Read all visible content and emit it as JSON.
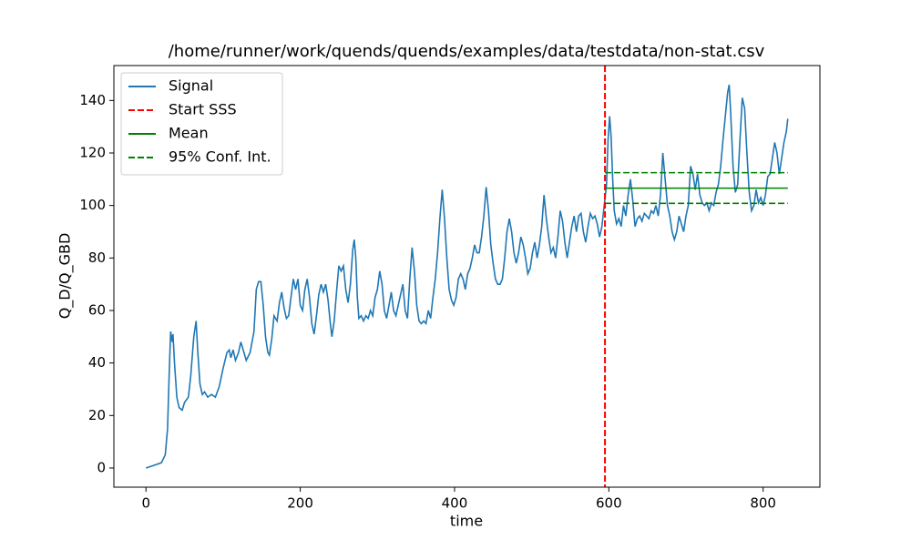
{
  "chart_data": {
    "type": "line",
    "title": "/home/runner/work/quends/quends/examples/data/testdata/non-stat.csv",
    "xlabel": "time",
    "ylabel": "Q_D/Q_GBD",
    "xlim": [
      -41.6,
      873.6
    ],
    "ylim": [
      -7.3,
      153.3
    ],
    "xticks": [
      0,
      200,
      400,
      600,
      800
    ],
    "yticks": [
      0,
      20,
      40,
      60,
      80,
      100,
      120,
      140
    ],
    "grid": false,
    "legend": "upper left",
    "series": [
      {
        "name": "Signal",
        "color": "#1f77b4",
        "dash": false,
        "x": [
          0,
          10,
          20,
          25,
          28,
          30,
          32,
          34,
          35,
          37,
          40,
          43,
          47,
          50,
          55,
          58,
          62,
          65,
          67,
          70,
          73,
          76,
          80,
          85,
          90,
          95,
          100,
          105,
          108,
          110,
          113,
          116,
          120,
          123,
          127,
          130,
          135,
          140,
          143,
          146,
          149,
          152,
          155,
          158,
          160,
          163,
          166,
          170,
          173,
          176,
          179,
          182,
          185,
          188,
          191,
          194,
          197,
          200,
          203,
          206,
          209,
          212,
          215,
          218,
          221,
          224,
          227,
          230,
          233,
          236,
          239,
          241,
          244,
          247,
          250,
          253,
          256,
          259,
          262,
          265,
          268,
          270,
          272,
          274,
          276,
          279,
          282,
          285,
          288,
          291,
          294,
          297,
          300,
          303,
          306,
          309,
          312,
          315,
          318,
          321,
          324,
          327,
          330,
          333,
          336,
          339,
          342,
          345,
          348,
          351,
          354,
          357,
          360,
          363,
          366,
          369,
          372,
          375,
          378,
          381,
          384,
          387,
          390,
          393,
          396,
          399,
          402,
          405,
          408,
          411,
          414,
          417,
          420,
          423,
          426,
          429,
          432,
          435,
          438,
          441,
          444,
          447,
          450,
          453,
          456,
          459,
          462,
          465,
          468,
          471,
          474,
          477,
          480,
          483,
          486,
          489,
          492,
          495,
          498,
          501,
          504,
          507,
          510,
          513,
          516,
          519,
          522,
          525,
          528,
          531,
          534,
          537,
          540,
          543,
          546,
          549,
          552,
          555,
          558,
          561,
          564,
          567,
          570,
          573,
          576,
          579,
          582,
          585,
          588,
          591,
          594,
          597,
          599,
          601,
          603,
          605,
          607,
          610,
          613,
          616,
          619,
          622,
          625,
          628,
          631,
          634,
          637,
          640,
          643,
          646,
          649,
          652,
          655,
          658,
          661,
          664,
          667,
          670,
          673,
          676,
          679,
          682,
          685,
          688,
          691,
          694,
          697,
          700,
          703,
          706,
          709,
          712,
          715,
          718,
          721,
          724,
          727,
          730,
          733,
          736,
          739,
          742,
          745,
          748,
          751,
          754,
          756,
          758,
          761,
          764,
          767,
          770,
          773,
          776,
          779,
          782,
          785,
          788,
          791,
          794,
          797,
          800,
          803,
          806,
          809,
          812,
          815,
          818,
          821,
          824,
          827,
          830,
          832
        ],
        "values": [
          0,
          1,
          2,
          5,
          15,
          35,
          52,
          48,
          51,
          40,
          27,
          23,
          22,
          25,
          27,
          35,
          50,
          56,
          45,
          32,
          28,
          29,
          27,
          28,
          27,
          31,
          38,
          44,
          45,
          42,
          45,
          41,
          44,
          48,
          44,
          41,
          44,
          52,
          68,
          71,
          71,
          62,
          50,
          44,
          43,
          49,
          58,
          56,
          63,
          67,
          61,
          57,
          58,
          65,
          72,
          68,
          72,
          62,
          60,
          68,
          72,
          65,
          55,
          51,
          58,
          66,
          70,
          67,
          70,
          64,
          55,
          50,
          56,
          67,
          77,
          75,
          77,
          68,
          63,
          70,
          83,
          87,
          80,
          65,
          57,
          58,
          56,
          58,
          57,
          60,
          58,
          65,
          68,
          75,
          70,
          60,
          57,
          62,
          67,
          60,
          58,
          62,
          66,
          70,
          60,
          57,
          72,
          84,
          75,
          62,
          56,
          55,
          56,
          55,
          60,
          57,
          65,
          72,
          82,
          95,
          106,
          95,
          80,
          68,
          64,
          62,
          65,
          72,
          74,
          72,
          68,
          74,
          76,
          80,
          85,
          82,
          82,
          88,
          96,
          107,
          98,
          85,
          78,
          72,
          70,
          70,
          72,
          80,
          90,
          95,
          90,
          82,
          78,
          82,
          88,
          85,
          80,
          74,
          76,
          82,
          86,
          80,
          85,
          92,
          104,
          95,
          88,
          82,
          84,
          80,
          88,
          98,
          94,
          86,
          80,
          86,
          92,
          96,
          90,
          96,
          97,
          90,
          86,
          92,
          97,
          95,
          96,
          93,
          88,
          92,
          100,
          108,
          125,
          134,
          126,
          110,
          98,
          93,
          95,
          92,
          100,
          96,
          104,
          110,
          102,
          92,
          95,
          96,
          94,
          97,
          96,
          95,
          98,
          97,
          100,
          96,
          104,
          120,
          110,
          100,
          96,
          90,
          87,
          90,
          96,
          93,
          90,
          96,
          100,
          115,
          112,
          106,
          112,
          104,
          101,
          100,
          101,
          98,
          101,
          100,
          105,
          108,
          115,
          125,
          134,
          143,
          146,
          135,
          115,
          105,
          108,
          125,
          141,
          137,
          120,
          105,
          98,
          100,
          106,
          101,
          103,
          100,
          104,
          111,
          112,
          118,
          124,
          120,
          112,
          118,
          124,
          128,
          133
        ]
      },
      {
        "name": "Start SSS",
        "color": "#ff0000",
        "dash": true,
        "vertical": true,
        "x": [
          595
        ]
      },
      {
        "name": "Mean",
        "color": "#008000",
        "dash": false,
        "x": [
          595,
          832
        ],
        "values": [
          106.6,
          106.6
        ]
      },
      {
        "name": "95% Conf. Int.",
        "color": "#008000",
        "dash": true,
        "x": [
          595,
          832
        ],
        "values": [
          112.5,
          112.5
        ]
      },
      {
        "color": "#008000",
        "dash": true,
        "x": [
          595,
          832
        ],
        "values": [
          100.8,
          100.8
        ]
      }
    ]
  }
}
